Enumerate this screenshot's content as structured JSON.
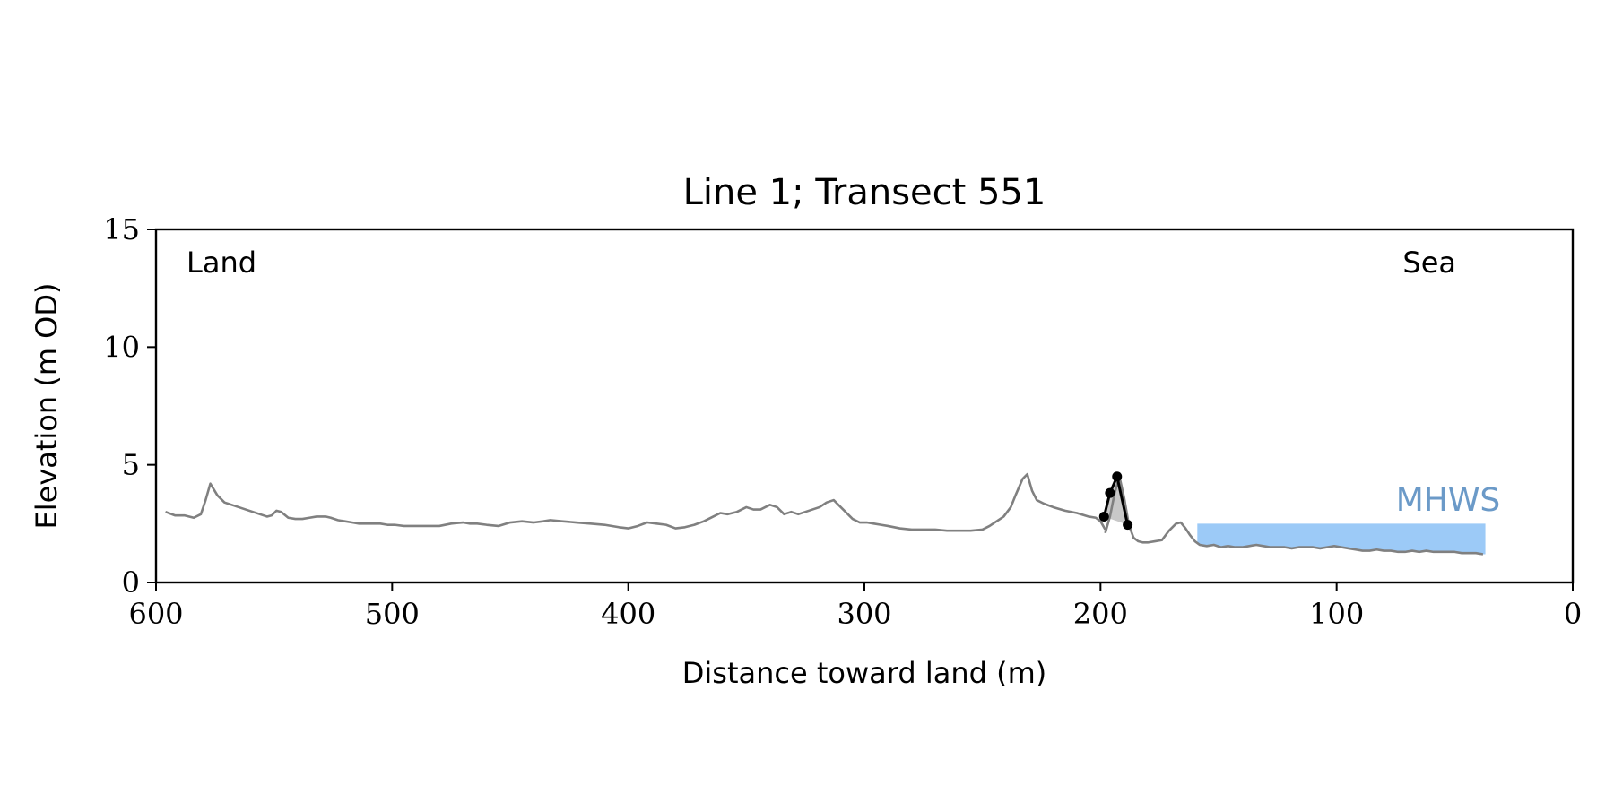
{
  "chart_data": {
    "type": "line",
    "title": "Line 1; Transect 551",
    "xlabel": "Distance toward land (m)",
    "ylabel": "Elevation (m OD)",
    "xlim": [
      600,
      0
    ],
    "ylim": [
      0,
      15
    ],
    "xticks": [
      600,
      500,
      400,
      300,
      200,
      100,
      0
    ],
    "yticks": [
      0,
      5,
      10,
      15
    ],
    "annotations": {
      "left": "Land",
      "right": "Sea",
      "water": "MHWS"
    },
    "colors": {
      "profile": "#808080",
      "dune": "#000000",
      "dune_fill": "#c8c8c8",
      "water": "#9ccaf7",
      "water_label": "#6b9ac8"
    },
    "series": [
      {
        "x": [
          596,
          592,
          588,
          584,
          581,
          579,
          577,
          574,
          571,
          568,
          565,
          562,
          559,
          556,
          553,
          551,
          549,
          547,
          544,
          541,
          538,
          535,
          532,
          530,
          528,
          526,
          523,
          520,
          517,
          514,
          511,
          508,
          505,
          502,
          499,
          495,
          490,
          485,
          480,
          475,
          470,
          467,
          464,
          460,
          455,
          450,
          445,
          440,
          436,
          433,
          428,
          422,
          416,
          410,
          404,
          400,
          396,
          392,
          388,
          384,
          380,
          376,
          372,
          368,
          364,
          361,
          358,
          354,
          350,
          347,
          344,
          340,
          337,
          334,
          331,
          328,
          325,
          322,
          319,
          316,
          313,
          311,
          308,
          305,
          302,
          299,
          296,
          293,
          290,
          285,
          280,
          275,
          270,
          265,
          260,
          255,
          250,
          247,
          244,
          241,
          238,
          236,
          233,
          231,
          229,
          227,
          224,
          220,
          215,
          210,
          205,
          202,
          200,
          198
        ],
        "y": [
          3.0,
          2.85,
          2.85,
          2.75,
          2.9,
          3.5,
          4.2,
          3.7,
          3.4,
          3.3,
          3.2,
          3.1,
          3.0,
          2.9,
          2.8,
          2.85,
          3.05,
          3.0,
          2.75,
          2.7,
          2.7,
          2.75,
          2.8,
          2.8,
          2.8,
          2.75,
          2.65,
          2.6,
          2.55,
          2.5,
          2.5,
          2.5,
          2.5,
          2.45,
          2.45,
          2.4,
          2.4,
          2.4,
          2.4,
          2.5,
          2.55,
          2.5,
          2.5,
          2.45,
          2.4,
          2.55,
          2.6,
          2.55,
          2.6,
          2.65,
          2.6,
          2.55,
          2.5,
          2.45,
          2.35,
          2.3,
          2.4,
          2.55,
          2.5,
          2.45,
          2.3,
          2.35,
          2.45,
          2.6,
          2.8,
          2.95,
          2.9,
          3.0,
          3.2,
          3.1,
          3.1,
          3.3,
          3.2,
          2.9,
          3.0,
          2.9,
          3.0,
          3.1,
          3.2,
          3.4,
          3.5,
          3.3,
          3.0,
          2.7,
          2.55,
          2.55,
          2.5,
          2.45,
          2.4,
          2.3,
          2.25,
          2.25,
          2.25,
          2.2,
          2.2,
          2.2,
          2.25,
          2.4,
          2.6,
          2.8,
          3.2,
          3.7,
          4.4,
          4.6,
          3.9,
          3.5,
          3.35,
          3.2,
          3.05,
          2.95,
          2.8,
          2.75,
          2.6,
          2.25
        ]
      },
      {
        "x": [
          198,
          196,
          194,
          192,
          190,
          188,
          186,
          184,
          182,
          180,
          177,
          174,
          171,
          168,
          166,
          164,
          162,
          160,
          158,
          155,
          152,
          149,
          146,
          143,
          140,
          137,
          134,
          131,
          128,
          125,
          122,
          119,
          116,
          113,
          110,
          107,
          104,
          101,
          98,
          95,
          92,
          89,
          86,
          83,
          80,
          77,
          74,
          71,
          68,
          65,
          62,
          59,
          56,
          53,
          50,
          47,
          44,
          41,
          38
        ],
        "y": [
          2.1,
          2.8,
          3.8,
          4.5,
          3.6,
          2.45,
          1.9,
          1.75,
          1.7,
          1.7,
          1.75,
          1.8,
          2.2,
          2.5,
          2.55,
          2.3,
          2.0,
          1.75,
          1.6,
          1.55,
          1.6,
          1.5,
          1.55,
          1.5,
          1.5,
          1.55,
          1.6,
          1.55,
          1.5,
          1.5,
          1.5,
          1.45,
          1.5,
          1.5,
          1.5,
          1.45,
          1.5,
          1.55,
          1.5,
          1.45,
          1.4,
          1.35,
          1.35,
          1.4,
          1.35,
          1.35,
          1.3,
          1.3,
          1.35,
          1.3,
          1.35,
          1.3,
          1.3,
          1.3,
          1.3,
          1.25,
          1.25,
          1.25,
          1.2
        ]
      }
    ],
    "dune_points": {
      "x": [
        198.5,
        196,
        193,
        188.5
      ],
      "y": [
        2.8,
        3.8,
        4.5,
        2.45
      ]
    },
    "mhws": {
      "x_start": 159,
      "x_end": 37,
      "level": 2.5
    }
  }
}
